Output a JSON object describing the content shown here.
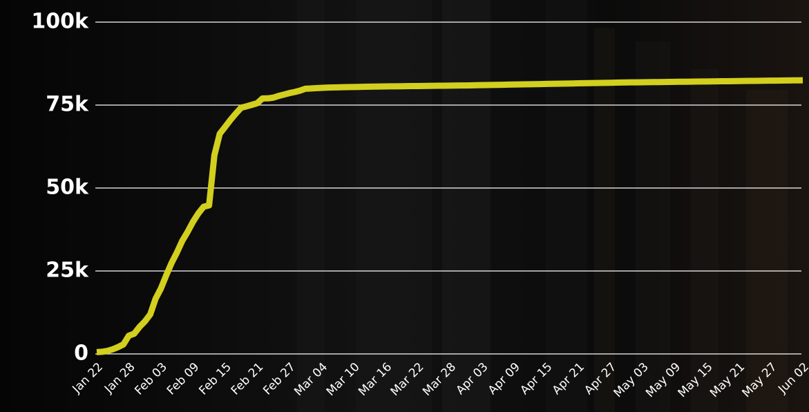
{
  "chart_data": {
    "type": "line",
    "color": "#d2cf1e",
    "grid": true,
    "ylim": [
      0,
      100000
    ],
    "yticks": [
      0,
      {
        "value": 25000,
        "label": "25k"
      },
      {
        "value": 50000,
        "label": "50k"
      },
      {
        "value": 75000,
        "label": "75k"
      },
      {
        "value": 100000,
        "label": "100k"
      }
    ],
    "categories": [
      "Jan 22",
      null,
      null,
      null,
      null,
      null,
      "Jan 28",
      null,
      null,
      null,
      null,
      null,
      "Feb 03",
      null,
      null,
      null,
      null,
      null,
      "Feb 09",
      null,
      null,
      null,
      null,
      null,
      "Feb 15",
      null,
      null,
      null,
      null,
      null,
      "Feb 21",
      null,
      null,
      null,
      null,
      null,
      "Feb 27",
      null,
      null,
      null,
      null,
      null,
      "Mar 04",
      null,
      null,
      null,
      null,
      null,
      "Mar 10",
      null,
      null,
      null,
      null,
      null,
      "Mar 16",
      null,
      null,
      null,
      null,
      null,
      "Mar 22",
      null,
      null,
      null,
      null,
      null,
      "Mar 28",
      null,
      null,
      null,
      null,
      null,
      "Apr 03",
      null,
      null,
      null,
      null,
      null,
      "Apr 09",
      null,
      null,
      null,
      null,
      null,
      "Apr 15",
      null,
      null,
      null,
      null,
      null,
      "Apr 21",
      null,
      null,
      null,
      null,
      null,
      "Apr 27",
      null,
      null,
      null,
      null,
      null,
      "May 03",
      null,
      null,
      null,
      null,
      null,
      "May 09",
      null,
      null,
      null,
      null,
      null,
      "May 15",
      null,
      null,
      null,
      null,
      null,
      "May 21",
      null,
      null,
      null,
      null,
      null,
      "May 27",
      null,
      null,
      null,
      null,
      null,
      "Jun 02"
    ],
    "values": [
      548,
      643,
      920,
      1406,
      2075,
      2877,
      5509,
      6087,
      8141,
      9802,
      11891,
      16630,
      19716,
      23707,
      27440,
      30587,
      34110,
      36814,
      39829,
      42354,
      44386,
      44759,
      59895,
      66358,
      68413,
      70513,
      72434,
      74211,
      74619,
      75077,
      75550,
      77001,
      77022,
      77241,
      77754,
      78166,
      78600,
      78928,
      79356,
      79932,
      80010,
      80100,
      80180,
      80250,
      80300,
      80350,
      80390,
      80420,
      80450,
      80480,
      80510,
      80540,
      80570,
      80600,
      80620,
      80640,
      80660,
      80680,
      80700,
      80720,
      80740,
      80760,
      80780,
      80800,
      80820,
      80840,
      80860,
      80880,
      80900,
      80920,
      80950,
      80980,
      81010,
      81040,
      81070,
      81100,
      81130,
      81160,
      81190,
      81220,
      81250,
      81280,
      81310,
      81340,
      81370,
      81400,
      81430,
      81460,
      81490,
      81520,
      81550,
      81580,
      81610,
      81640,
      81670,
      81700,
      81730,
      81760,
      81790,
      81820,
      81840,
      81860,
      81880,
      81900,
      81920,
      81940,
      81960,
      81980,
      82000,
      82020,
      82040,
      82060,
      82080,
      82100,
      82120,
      82140,
      82160,
      82180,
      82200,
      82220,
      82240,
      82260,
      82280,
      82300,
      82320,
      82340,
      82360,
      82380,
      82400,
      82420,
      82440,
      82460,
      82480
    ]
  }
}
